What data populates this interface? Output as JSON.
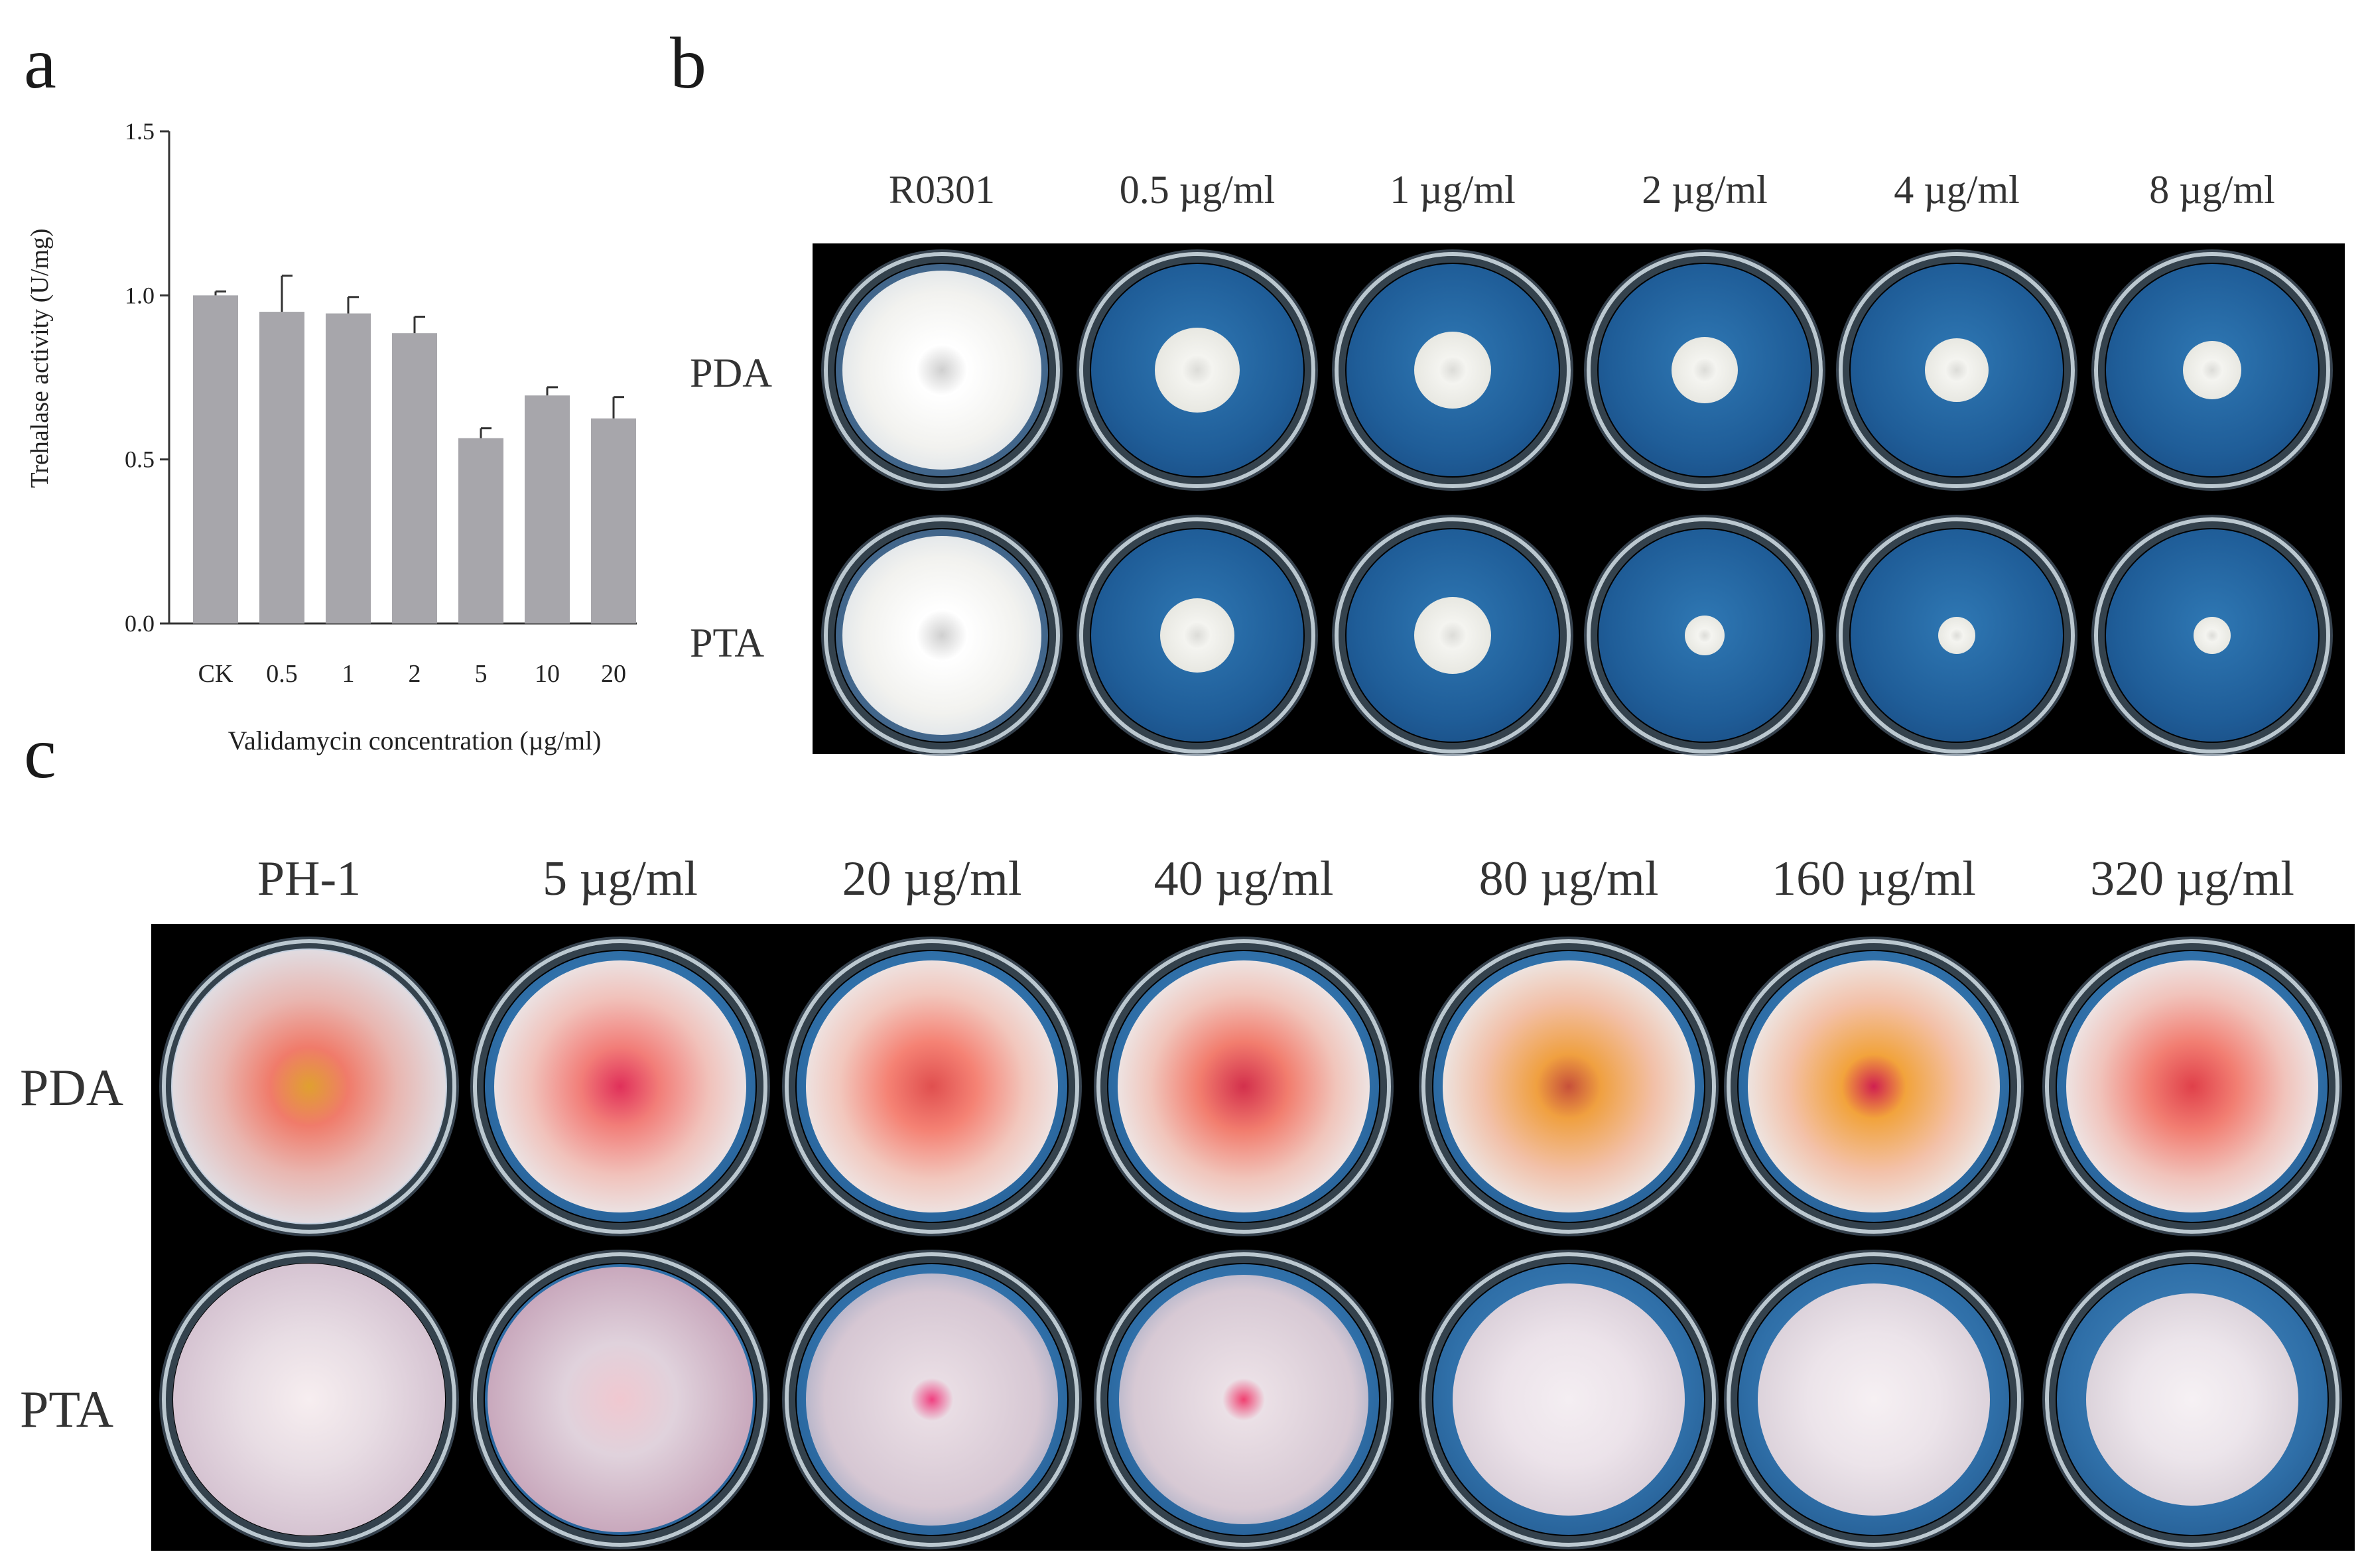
{
  "panel_labels": {
    "a": "a",
    "b": "b",
    "c": "c"
  },
  "chart_data": {
    "type": "bar",
    "categories": [
      "CK",
      "0.5",
      "1",
      "2",
      "5",
      "10",
      "20"
    ],
    "values": [
      1.0,
      0.95,
      0.945,
      0.885,
      0.565,
      0.695,
      0.625
    ],
    "errors": [
      0.012,
      0.11,
      0.05,
      0.05,
      0.03,
      0.025,
      0.065
    ],
    "ylim": [
      0,
      1.5
    ],
    "yticks": [
      "0.0",
      "0.5",
      "1.0",
      "1.5"
    ],
    "ytick_values": [
      0,
      0.5,
      1.0,
      1.5
    ],
    "ylabel": "Trehalase activity (U/mg)",
    "xlabel": "Validamycin  concentration (µg/ml)",
    "bar_color": "#a7a6ab"
  },
  "panel_b": {
    "columns": [
      "R0301",
      "0.5 µg/ml",
      "1 µg/ml",
      "2 µg/ml",
      "4 µg/ml",
      "8 µg/ml"
    ],
    "rows": [
      "PDA",
      "PTA"
    ]
  },
  "panel_c": {
    "columns": [
      "PH-1",
      "5 µg/ml",
      "20 µg/ml",
      "40 µg/ml",
      "80 µg/ml",
      "160 µg/ml",
      "320 µg/ml"
    ],
    "rows": [
      "PDA",
      "PTA"
    ]
  }
}
